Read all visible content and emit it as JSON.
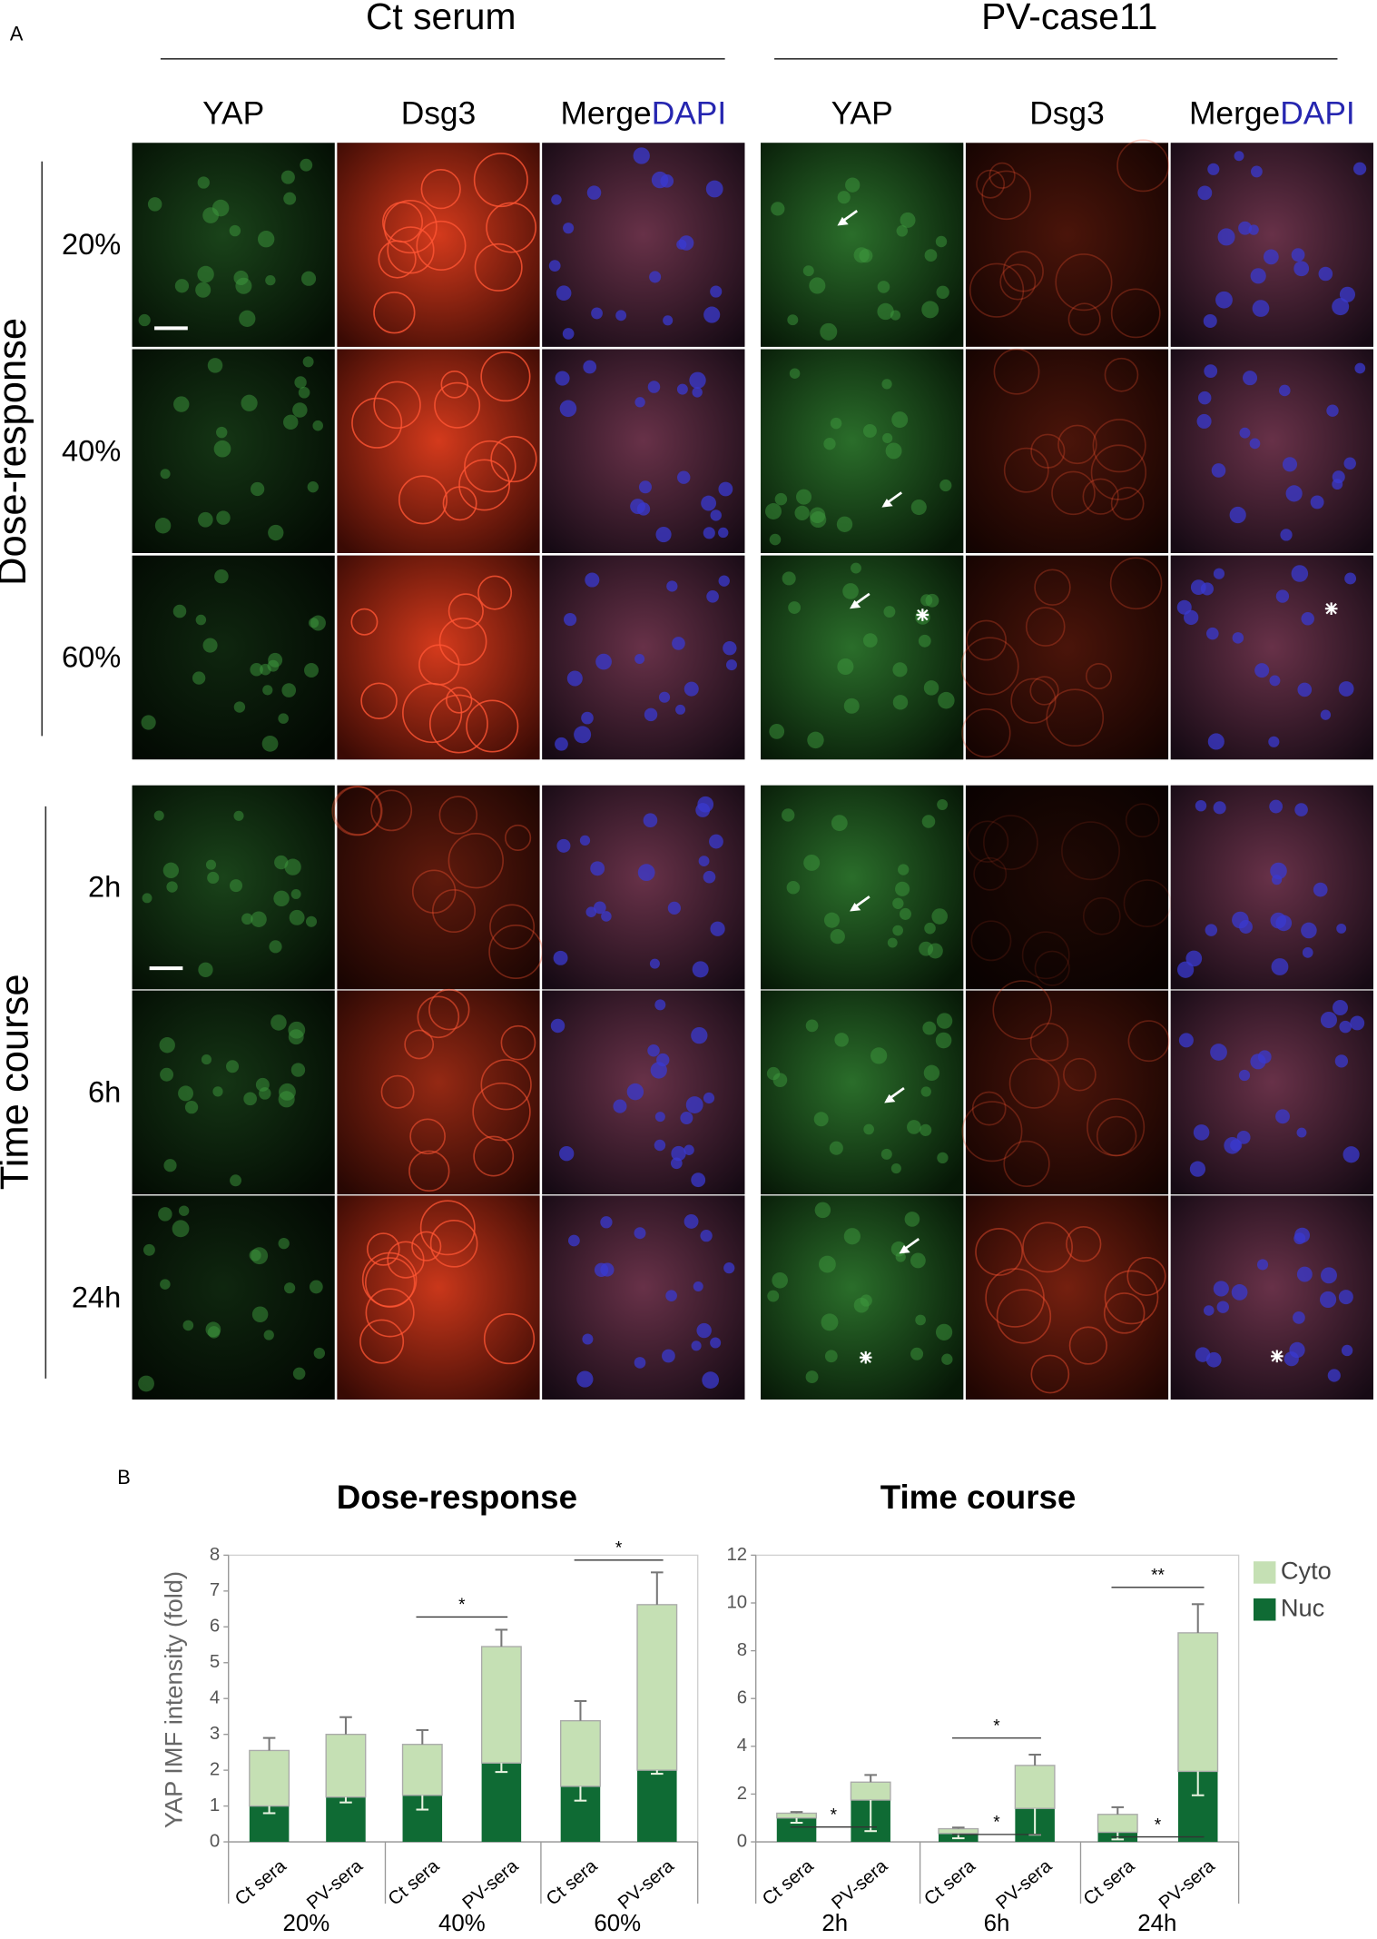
{
  "panel_a": {
    "label": "A",
    "conditions": [
      "Ct serum",
      "PV-case11"
    ],
    "channels": [
      "YAP",
      "Dsg3",
      "Merge"
    ],
    "dapi": "DAPI",
    "sections": [
      {
        "title": "Dose-response",
        "rows": [
          "20%",
          "40%",
          "60%"
        ]
      },
      {
        "title": "Time course",
        "rows": [
          "2h",
          "6h",
          "24h"
        ]
      }
    ]
  },
  "panel_b": {
    "label": "B"
  },
  "chart_data": [
    {
      "type": "stacked-bar",
      "title": "Dose-response",
      "y_label": "YAP IMF intensity (fold)",
      "categories": [
        "Ct sera",
        "PV-sera",
        "Ct sera",
        "PV-sera",
        "Ct sera",
        "PV-sera"
      ],
      "groups": [
        "20%",
        "40%",
        "60%"
      ],
      "series": [
        {
          "color": "#c5e0b4",
          "values": [
            1.55,
            1.75,
            1.42,
            3.25,
            1.83,
            4.62
          ],
          "errors": [
            0.35,
            0.48,
            0.4,
            0.47,
            0.55,
            0.9
          ]
        },
        {
          "color": "#0f6b34",
          "values": [
            1.0,
            1.25,
            1.3,
            2.2,
            1.55,
            2.0
          ],
          "errors": [
            0.2,
            0.15,
            0.4,
            0.25,
            0.4,
            0.1
          ]
        }
      ],
      "annotations": [
        "*",
        "*"
      ],
      "ylim": [
        0,
        8
      ],
      "yticks": [
        0,
        1,
        2,
        3,
        4,
        5,
        6,
        7,
        8
      ]
    },
    {
      "type": "stacked-bar",
      "title": "Time course",
      "categories": [
        "Ct sera",
        "PV-sera",
        "Ct sera",
        "PV-sera",
        "Ct sera",
        "PV-sera"
      ],
      "groups": [
        "2h",
        "6h",
        "24h"
      ],
      "series": [
        {
          "name": "Cyto",
          "color": "#c5e0b4",
          "values": [
            0.2,
            0.75,
            0.2,
            1.8,
            0.75,
            5.8
          ],
          "errors": [
            0.05,
            0.3,
            0.05,
            0.45,
            0.3,
            1.2
          ]
        },
        {
          "name": "Nuc",
          "color": "#0f6b34",
          "values": [
            1.0,
            1.75,
            0.35,
            1.4,
            0.4,
            2.95
          ],
          "errors": [
            0.2,
            1.3,
            0.2,
            1.1,
            0.3,
            1.0
          ]
        }
      ],
      "annotations": [
        "*",
        "*",
        "*",
        "**",
        "*"
      ],
      "legend": "upper right",
      "ylim": [
        0,
        12
      ],
      "yticks": [
        0,
        2,
        4,
        6,
        8,
        10,
        12
      ]
    }
  ]
}
